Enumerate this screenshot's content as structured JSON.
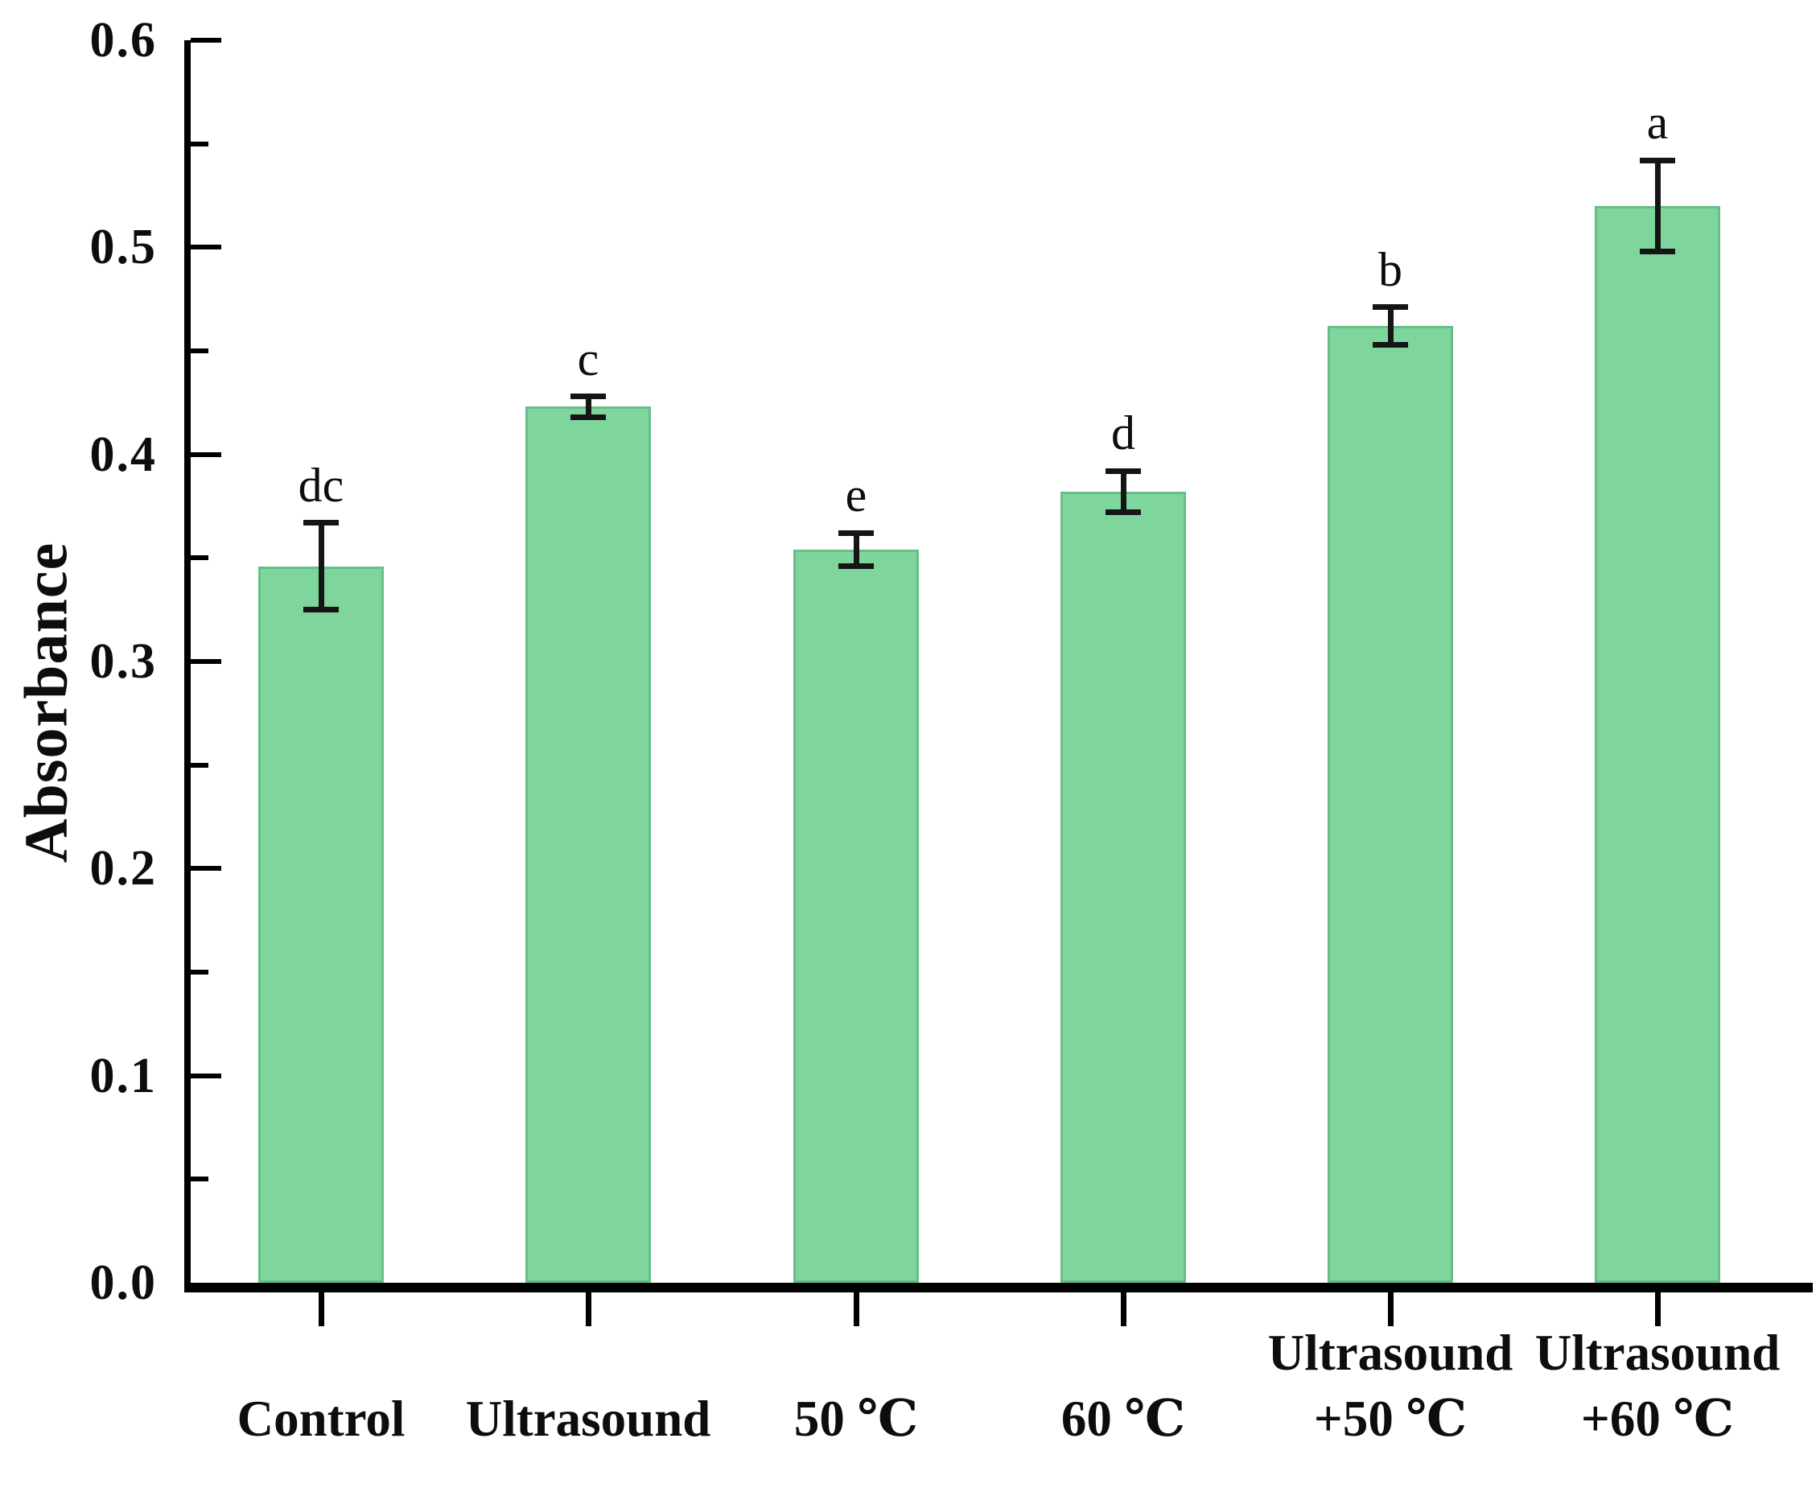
{
  "chart_data": {
    "type": "bar",
    "title": "",
    "xlabel": "",
    "ylabel": "Absorbance",
    "ylim": [
      0.0,
      0.6
    ],
    "ytick_step": 0.1,
    "yminor_step": 0.05,
    "ytick_labels": [
      "0.0",
      "0.1",
      "0.2",
      "0.3",
      "0.4",
      "0.5",
      "0.6"
    ],
    "grid": false,
    "legend_position": "none",
    "categories": [
      "Control",
      "Ultrasound",
      "50 ℃",
      "60 ℃",
      "Ultrasound +50 ℃",
      "Ultrasound +60 ℃"
    ],
    "category_lines": [
      [
        "Control"
      ],
      [
        "Ultrasound"
      ],
      [
        "50 ℃"
      ],
      [
        "60 ℃"
      ],
      [
        "Ultrasound",
        "+50 ℃"
      ],
      [
        "Ultrasound",
        "+60 ℃"
      ]
    ],
    "series": [
      {
        "name": "Absorbance",
        "values": [
          0.346,
          0.423,
          0.354,
          0.382,
          0.462,
          0.52
        ],
        "errors": [
          0.021,
          0.005,
          0.008,
          0.01,
          0.009,
          0.022
        ],
        "sig_letters": [
          "dc",
          "c",
          "e",
          "d",
          "b",
          "a"
        ]
      }
    ],
    "colors": {
      "bar_fill": "#7ed69c",
      "bar_border": "#68bd88",
      "axis": "#000000",
      "error_bar": "#151515",
      "text": "#0d0d0d",
      "background": "#ffffff"
    }
  }
}
